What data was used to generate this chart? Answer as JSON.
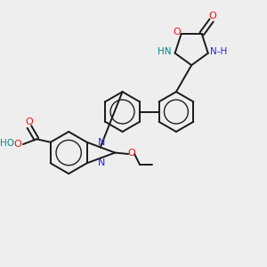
{
  "bg_color": "#eeeeee",
  "bond_color": "#1a1a1a",
  "N_color": "#2020ff",
  "O_color": "#ee1111",
  "NH_color": "#008888",
  "figsize": [
    3.0,
    3.0
  ],
  "dpi": 100,
  "xlim": [
    0,
    10
  ],
  "ylim": [
    0,
    10
  ]
}
